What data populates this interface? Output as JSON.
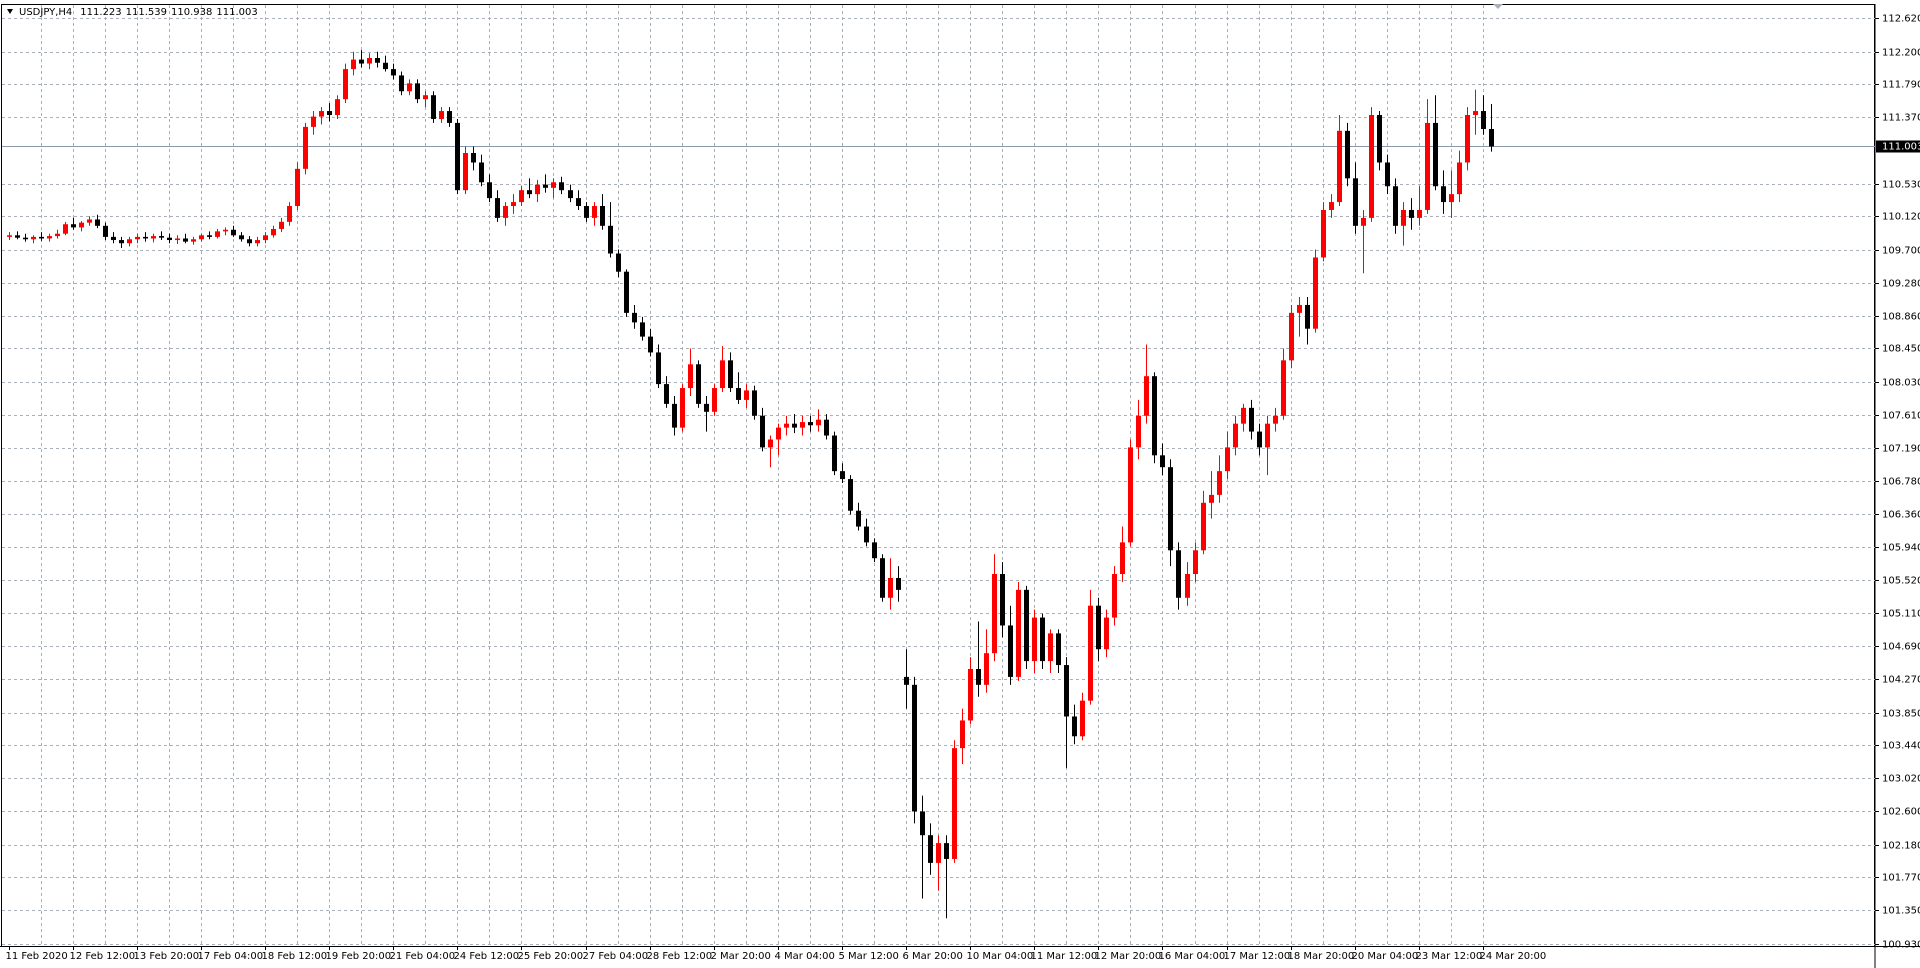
{
  "chart_data": {
    "type": "candlestick",
    "title": "USDJPY,H4",
    "up_color": "#ff0000",
    "down_color": "#000000",
    "grid": true,
    "grid_color": "#a9b0ba",
    "ylim": [
      100.9,
      112.79
    ],
    "yticks": [
      {
        "value": 112.62,
        "label": "112.620"
      },
      {
        "value": 112.2,
        "label": "112.200"
      },
      {
        "value": 111.79,
        "label": "111.790"
      },
      {
        "value": 111.37,
        "label": "111.370"
      },
      {
        "value": 110.53,
        "label": "110.530"
      },
      {
        "value": 110.12,
        "label": "110.120"
      },
      {
        "value": 109.7,
        "label": "109.700"
      },
      {
        "value": 109.28,
        "label": "109.280"
      },
      {
        "value": 108.86,
        "label": "108.860"
      },
      {
        "value": 108.45,
        "label": "108.450"
      },
      {
        "value": 108.03,
        "label": "108.030"
      },
      {
        "value": 107.61,
        "label": "107.610"
      },
      {
        "value": 107.19,
        "label": "107.190"
      },
      {
        "value": 106.78,
        "label": "106.780"
      },
      {
        "value": 106.36,
        "label": "106.360"
      },
      {
        "value": 105.94,
        "label": "105.940"
      },
      {
        "value": 105.52,
        "label": "105.520"
      },
      {
        "value": 105.11,
        "label": "105.110"
      },
      {
        "value": 104.69,
        "label": "104.690"
      },
      {
        "value": 104.27,
        "label": "104.270"
      },
      {
        "value": 103.85,
        "label": "103.850"
      },
      {
        "value": 103.44,
        "label": "103.440"
      },
      {
        "value": 103.02,
        "label": "103.020"
      },
      {
        "value": 102.6,
        "label": "102.600"
      },
      {
        "value": 102.18,
        "label": "102.180"
      },
      {
        "value": 101.77,
        "label": "101.770"
      },
      {
        "value": 101.35,
        "label": "101.350"
      },
      {
        "value": 100.93,
        "label": "100.930"
      }
    ],
    "categories": [
      "11 Feb 2020",
      null,
      null,
      null,
      null,
      null,
      null,
      null,
      "12 Feb 12:00",
      null,
      null,
      null,
      null,
      null,
      null,
      null,
      "13 Feb 20:00",
      null,
      null,
      null,
      null,
      null,
      null,
      null,
      "17 Feb 04:00",
      null,
      null,
      null,
      null,
      null,
      null,
      null,
      "18 Feb 12:00",
      null,
      null,
      null,
      null,
      null,
      null,
      null,
      "19 Feb 20:00",
      null,
      null,
      null,
      null,
      null,
      null,
      null,
      "21 Feb 04:00",
      null,
      null,
      null,
      null,
      null,
      null,
      null,
      "24 Feb 12:00",
      null,
      null,
      null,
      null,
      null,
      null,
      null,
      "25 Feb 20:00",
      null,
      null,
      null,
      null,
      null,
      null,
      null,
      "27 Feb 04:00",
      null,
      null,
      null,
      null,
      null,
      null,
      null,
      "28 Feb 12:00",
      null,
      null,
      null,
      null,
      null,
      null,
      null,
      "2 Mar 20:00",
      null,
      null,
      null,
      null,
      null,
      null,
      null,
      "4 Mar 04:00",
      null,
      null,
      null,
      null,
      null,
      null,
      null,
      "5 Mar 12:00",
      null,
      null,
      null,
      null,
      null,
      null,
      null,
      "6 Mar 20:00",
      null,
      null,
      null,
      null,
      null,
      null,
      null,
      "10 Mar 04:00",
      null,
      null,
      null,
      null,
      null,
      null,
      null,
      "11 Mar 12:00",
      null,
      null,
      null,
      null,
      null,
      null,
      null,
      "12 Mar 20:00",
      null,
      null,
      null,
      null,
      null,
      null,
      null,
      "16 Mar 04:00",
      null,
      null,
      null,
      null,
      null,
      null,
      null,
      "17 Mar 12:00",
      null,
      null,
      null,
      null,
      null,
      null,
      null,
      "18 Mar 20:00",
      null,
      null,
      null,
      null,
      null,
      null,
      null,
      "20 Mar 04:00",
      null,
      null,
      null,
      null,
      null,
      null,
      null,
      "23 Mar 12:00",
      null,
      null,
      null,
      null,
      null,
      null,
      null,
      "24 Mar 20:00",
      null
    ],
    "candles": [
      [
        109.86,
        109.92,
        109.82,
        109.88
      ],
      [
        109.88,
        109.93,
        109.83,
        109.85
      ],
      [
        109.85,
        109.9,
        109.8,
        109.83
      ],
      [
        109.83,
        109.88,
        109.78,
        109.86
      ],
      [
        109.86,
        109.92,
        109.81,
        109.84
      ],
      [
        109.84,
        109.9,
        109.8,
        109.87
      ],
      [
        109.87,
        109.95,
        109.84,
        109.9
      ],
      [
        109.9,
        110.05,
        109.88,
        110.02
      ],
      [
        110.02,
        110.1,
        109.95,
        109.98
      ],
      [
        109.98,
        110.06,
        109.93,
        110.04
      ],
      [
        110.04,
        110.12,
        110.0,
        110.08
      ],
      [
        110.08,
        110.14,
        109.97,
        110.0
      ],
      [
        110.0,
        110.04,
        109.82,
        109.86
      ],
      [
        109.86,
        109.92,
        109.78,
        109.82
      ],
      [
        109.82,
        109.86,
        109.72,
        109.78
      ],
      [
        109.78,
        109.86,
        109.74,
        109.83
      ],
      [
        109.83,
        109.9,
        109.78,
        109.86
      ],
      [
        109.86,
        109.92,
        109.8,
        109.84
      ],
      [
        109.84,
        109.9,
        109.79,
        109.87
      ],
      [
        109.87,
        109.93,
        109.82,
        109.85
      ],
      [
        109.85,
        109.9,
        109.78,
        109.82
      ],
      [
        109.82,
        109.88,
        109.77,
        109.84
      ],
      [
        109.84,
        109.9,
        109.78,
        109.8
      ],
      [
        109.8,
        109.86,
        109.76,
        109.83
      ],
      [
        109.83,
        109.9,
        109.8,
        109.88
      ],
      [
        109.88,
        109.93,
        109.83,
        109.86
      ],
      [
        109.86,
        109.96,
        109.84,
        109.93
      ],
      [
        109.93,
        109.98,
        109.88,
        109.95
      ],
      [
        109.95,
        110.0,
        109.86,
        109.88
      ],
      [
        109.88,
        109.92,
        109.8,
        109.83
      ],
      [
        109.83,
        109.87,
        109.74,
        109.78
      ],
      [
        109.78,
        109.86,
        109.74,
        109.82
      ],
      [
        109.82,
        109.92,
        109.78,
        109.88
      ],
      [
        109.88,
        110.0,
        109.85,
        109.96
      ],
      [
        109.96,
        110.1,
        109.92,
        110.05
      ],
      [
        110.05,
        110.3,
        110.0,
        110.25
      ],
      [
        110.25,
        110.8,
        110.2,
        110.72
      ],
      [
        110.72,
        111.3,
        110.65,
        111.25
      ],
      [
        111.25,
        111.45,
        111.15,
        111.38
      ],
      [
        111.38,
        111.5,
        111.28,
        111.45
      ],
      [
        111.45,
        111.55,
        111.32,
        111.4
      ],
      [
        111.4,
        111.65,
        111.35,
        111.6
      ],
      [
        111.6,
        112.05,
        111.55,
        111.98
      ],
      [
        111.98,
        112.2,
        111.9,
        112.1
      ],
      [
        112.1,
        112.22,
        112.0,
        112.05
      ],
      [
        112.05,
        112.18,
        111.98,
        112.12
      ],
      [
        112.12,
        112.2,
        112.0,
        112.06
      ],
      [
        112.06,
        112.15,
        111.95,
        111.98
      ],
      [
        111.98,
        112.05,
        111.85,
        111.9
      ],
      [
        111.9,
        111.95,
        111.65,
        111.7
      ],
      [
        111.7,
        111.85,
        111.65,
        111.8
      ],
      [
        111.8,
        111.85,
        111.55,
        111.6
      ],
      [
        111.6,
        111.7,
        111.5,
        111.65
      ],
      [
        111.65,
        111.7,
        111.3,
        111.35
      ],
      [
        111.35,
        111.5,
        111.3,
        111.45
      ],
      [
        111.45,
        111.5,
        111.25,
        111.3
      ],
      [
        111.3,
        111.35,
        110.4,
        110.45
      ],
      [
        110.45,
        111.0,
        110.4,
        110.92
      ],
      [
        110.92,
        111.0,
        110.7,
        110.8
      ],
      [
        110.8,
        110.9,
        110.5,
        110.55
      ],
      [
        110.55,
        110.65,
        110.3,
        110.35
      ],
      [
        110.35,
        110.45,
        110.05,
        110.1
      ],
      [
        110.1,
        110.3,
        110.0,
        110.25
      ],
      [
        110.25,
        110.4,
        110.15,
        110.3
      ],
      [
        110.3,
        110.5,
        110.25,
        110.45
      ],
      [
        110.45,
        110.6,
        110.35,
        110.4
      ],
      [
        110.4,
        110.58,
        110.3,
        110.52
      ],
      [
        110.52,
        110.65,
        110.42,
        110.48
      ],
      [
        110.48,
        110.6,
        110.35,
        110.55
      ],
      [
        110.55,
        110.62,
        110.4,
        110.45
      ],
      [
        110.45,
        110.52,
        110.3,
        110.35
      ],
      [
        110.35,
        110.45,
        110.2,
        110.25
      ],
      [
        110.25,
        110.3,
        110.05,
        110.1
      ],
      [
        110.1,
        110.3,
        110.0,
        110.25
      ],
      [
        110.25,
        110.4,
        109.95,
        110.0
      ],
      [
        110.0,
        110.3,
        109.6,
        109.65
      ],
      [
        109.65,
        109.7,
        109.35,
        109.42
      ],
      [
        109.42,
        109.45,
        108.85,
        108.9
      ],
      [
        108.9,
        109.0,
        108.7,
        108.78
      ],
      [
        108.78,
        108.85,
        108.55,
        108.6
      ],
      [
        108.6,
        108.7,
        108.35,
        108.4
      ],
      [
        108.4,
        108.5,
        107.95,
        108.0
      ],
      [
        108.0,
        108.1,
        107.7,
        107.75
      ],
      [
        107.75,
        107.85,
        107.35,
        107.45
      ],
      [
        107.45,
        108.0,
        107.4,
        107.95
      ],
      [
        107.95,
        108.45,
        107.85,
        108.25
      ],
      [
        108.25,
        108.3,
        107.7,
        107.75
      ],
      [
        107.75,
        107.85,
        107.4,
        107.65
      ],
      [
        107.65,
        108.0,
        107.6,
        107.95
      ],
      [
        107.95,
        108.48,
        107.9,
        108.3
      ],
      [
        108.3,
        108.4,
        107.9,
        107.95
      ],
      [
        107.95,
        108.15,
        107.75,
        107.8
      ],
      [
        107.8,
        108.0,
        107.7,
        107.92
      ],
      [
        107.92,
        107.98,
        107.55,
        107.6
      ],
      [
        107.6,
        107.7,
        107.15,
        107.2
      ],
      [
        107.2,
        107.35,
        106.95,
        107.3
      ],
      [
        107.3,
        107.5,
        107.1,
        107.45
      ],
      [
        107.45,
        107.6,
        107.35,
        107.5
      ],
      [
        107.5,
        107.62,
        107.38,
        107.45
      ],
      [
        107.45,
        107.6,
        107.35,
        107.52
      ],
      [
        107.52,
        107.6,
        107.4,
        107.48
      ],
      [
        107.48,
        107.68,
        107.4,
        107.55
      ],
      [
        107.55,
        107.62,
        107.3,
        107.35
      ],
      [
        107.35,
        107.4,
        106.85,
        106.9
      ],
      [
        106.9,
        107.0,
        106.75,
        106.8
      ],
      [
        106.8,
        106.85,
        106.35,
        106.4
      ],
      [
        106.4,
        106.5,
        106.15,
        106.2
      ],
      [
        106.2,
        106.3,
        105.95,
        106.0
      ],
      [
        106.0,
        106.05,
        105.75,
        105.8
      ],
      [
        105.8,
        105.85,
        105.25,
        105.3
      ],
      [
        105.3,
        105.8,
        105.15,
        105.55
      ],
      [
        105.55,
        105.7,
        105.25,
        105.4
      ],
      [
        104.3,
        104.65,
        103.9,
        104.2
      ],
      [
        104.2,
        104.3,
        102.45,
        102.6
      ],
      [
        102.6,
        102.8,
        101.5,
        102.3
      ],
      [
        102.3,
        102.45,
        101.8,
        101.95
      ],
      [
        101.95,
        102.3,
        101.6,
        102.2
      ],
      [
        102.2,
        102.3,
        101.25,
        102.0
      ],
      [
        102.0,
        103.5,
        101.95,
        103.4
      ],
      [
        103.4,
        103.9,
        103.2,
        103.75
      ],
      [
        103.75,
        104.55,
        103.7,
        104.4
      ],
      [
        104.4,
        105.0,
        104.05,
        104.2
      ],
      [
        104.2,
        104.9,
        104.1,
        104.6
      ],
      [
        104.6,
        105.85,
        104.5,
        105.6
      ],
      [
        105.6,
        105.75,
        104.8,
        104.95
      ],
      [
        104.95,
        105.2,
        104.2,
        104.3
      ],
      [
        104.3,
        105.5,
        104.25,
        105.4
      ],
      [
        105.4,
        105.45,
        104.4,
        104.5
      ],
      [
        104.5,
        105.15,
        104.35,
        105.05
      ],
      [
        105.05,
        105.1,
        104.4,
        104.5
      ],
      [
        104.5,
        104.9,
        104.35,
        104.85
      ],
      [
        104.85,
        104.9,
        104.35,
        104.45
      ],
      [
        104.45,
        104.55,
        103.15,
        103.8
      ],
      [
        103.8,
        103.95,
        103.45,
        103.55
      ],
      [
        103.55,
        104.1,
        103.5,
        104.0
      ],
      [
        104.0,
        105.4,
        103.95,
        105.2
      ],
      [
        105.2,
        105.3,
        104.5,
        104.65
      ],
      [
        104.65,
        105.15,
        104.55,
        105.05
      ],
      [
        105.05,
        105.7,
        104.95,
        105.6
      ],
      [
        105.6,
        106.2,
        105.5,
        106.0
      ],
      [
        106.0,
        107.3,
        105.95,
        107.2
      ],
      [
        107.2,
        107.8,
        107.05,
        107.6
      ],
      [
        107.6,
        108.5,
        107.5,
        108.1
      ],
      [
        108.1,
        108.15,
        107.0,
        107.1
      ],
      [
        107.1,
        107.25,
        106.85,
        106.95
      ],
      [
        106.95,
        107.05,
        105.7,
        105.9
      ],
      [
        105.9,
        106.0,
        105.15,
        105.3
      ],
      [
        105.3,
        105.75,
        105.2,
        105.6
      ],
      [
        105.6,
        106.0,
        105.5,
        105.9
      ],
      [
        105.9,
        106.65,
        105.85,
        106.5
      ],
      [
        106.5,
        106.9,
        106.3,
        106.6
      ],
      [
        106.6,
        107.1,
        106.5,
        106.9
      ],
      [
        106.9,
        107.4,
        106.8,
        107.2
      ],
      [
        107.2,
        107.6,
        107.1,
        107.5
      ],
      [
        107.5,
        107.75,
        107.4,
        107.7
      ],
      [
        107.7,
        107.8,
        107.3,
        107.4
      ],
      [
        107.4,
        107.5,
        107.1,
        107.2
      ],
      [
        107.2,
        107.6,
        106.85,
        107.5
      ],
      [
        107.5,
        107.7,
        107.4,
        107.6
      ],
      [
        107.6,
        108.45,
        107.55,
        108.3
      ],
      [
        108.3,
        109.0,
        108.2,
        108.9
      ],
      [
        108.9,
        109.1,
        108.6,
        109.0
      ],
      [
        109.0,
        109.1,
        108.5,
        108.7
      ],
      [
        108.7,
        109.7,
        108.65,
        109.6
      ],
      [
        109.6,
        110.3,
        109.55,
        110.2
      ],
      [
        110.2,
        110.4,
        110.1,
        110.3
      ],
      [
        110.3,
        111.4,
        110.25,
        111.2
      ],
      [
        111.2,
        111.3,
        110.5,
        110.6
      ],
      [
        110.6,
        110.8,
        109.9,
        110.0
      ],
      [
        110.0,
        110.2,
        109.4,
        110.1
      ],
      [
        110.1,
        111.5,
        110.05,
        111.4
      ],
      [
        111.4,
        111.45,
        110.7,
        110.8
      ],
      [
        110.8,
        110.9,
        110.4,
        110.5
      ],
      [
        110.5,
        110.6,
        109.9,
        110.0
      ],
      [
        110.0,
        110.3,
        109.75,
        110.2
      ],
      [
        110.2,
        110.35,
        109.95,
        110.1
      ],
      [
        110.1,
        110.5,
        110.0,
        110.2
      ],
      [
        110.2,
        111.6,
        110.15,
        111.3
      ],
      [
        111.3,
        111.65,
        110.45,
        110.5
      ],
      [
        110.5,
        110.7,
        110.15,
        110.3
      ],
      [
        110.3,
        110.7,
        110.1,
        110.4
      ],
      [
        110.4,
        110.95,
        110.3,
        110.8
      ],
      [
        110.8,
        111.5,
        110.7,
        111.4
      ],
      [
        111.4,
        111.72,
        111.15,
        111.45
      ],
      [
        111.45,
        111.65,
        111.15,
        111.223
      ],
      [
        111.223,
        111.539,
        110.938,
        111.003
      ]
    ]
  }
}
